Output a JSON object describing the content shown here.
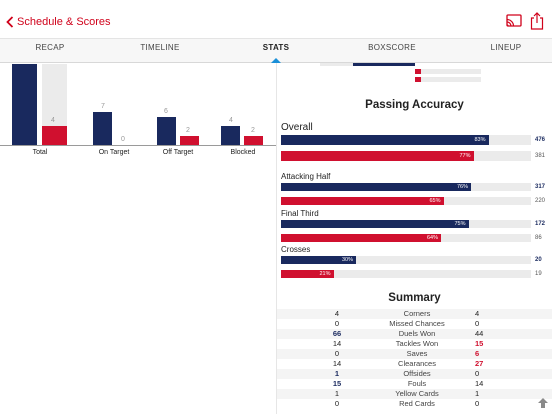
{
  "header": {
    "back_label": "Schedule & Scores"
  },
  "tabs": [
    {
      "label": "RECAP"
    },
    {
      "label": "TIMELINE"
    },
    {
      "label": "STATS"
    },
    {
      "label": "BOXSCORE"
    },
    {
      "label": "LINEUP"
    }
  ],
  "colors": {
    "home": "#19295e",
    "away": "#d0102f",
    "accent": "#d0021b",
    "tab_indicator": "#1a8fd8"
  },
  "shots": [
    {
      "label": "Total",
      "home": null,
      "away": 4
    },
    {
      "label": "On Target",
      "home": 7,
      "away": 0
    },
    {
      "label": "Off Target",
      "home": 6,
      "away": 2
    },
    {
      "label": "Blocked",
      "home": 4,
      "away": 2
    }
  ],
  "passing": {
    "title": "Passing Accuracy",
    "rows": [
      {
        "label": "Overall",
        "home_pct": "83%",
        "home_val": "476",
        "away_pct": "77%",
        "away_val": "381",
        "home_frac": 0.83,
        "away_frac": 0.77
      },
      {
        "label": "Attacking Half",
        "home_pct": "76%",
        "home_val": "317",
        "away_pct": "65%",
        "away_val": "220",
        "home_frac": 0.76,
        "away_frac": 0.65
      },
      {
        "label": "Final Third",
        "home_pct": "75%",
        "home_val": "172",
        "away_pct": "64%",
        "away_val": "86",
        "home_frac": 0.75,
        "away_frac": 0.64
      },
      {
        "label": "Crosses",
        "home_pct": "30%",
        "home_val": "20",
        "away_pct": "21%",
        "away_val": "19",
        "home_frac": 0.3,
        "away_frac": 0.21
      }
    ]
  },
  "summary": {
    "title": "Summary",
    "rows": [
      {
        "home": "4",
        "label": "Corners",
        "away": "4",
        "lead": ""
      },
      {
        "home": "0",
        "label": "Missed Chances",
        "away": "0",
        "lead": ""
      },
      {
        "home": "66",
        "label": "Duels Won",
        "away": "44",
        "lead": "home"
      },
      {
        "home": "14",
        "label": "Tackles Won",
        "away": "15",
        "lead": "away"
      },
      {
        "home": "0",
        "label": "Saves",
        "away": "6",
        "lead": "away"
      },
      {
        "home": "14",
        "label": "Clearances",
        "away": "27",
        "lead": "away"
      },
      {
        "home": "1",
        "label": "Offsides",
        "away": "0",
        "lead": "home"
      },
      {
        "home": "15",
        "label": "Fouls",
        "away": "14",
        "lead": "home"
      },
      {
        "home": "1",
        "label": "Yellow Cards",
        "away": "1",
        "lead": ""
      },
      {
        "home": "0",
        "label": "Red Cards",
        "away": "0",
        "lead": ""
      }
    ]
  }
}
